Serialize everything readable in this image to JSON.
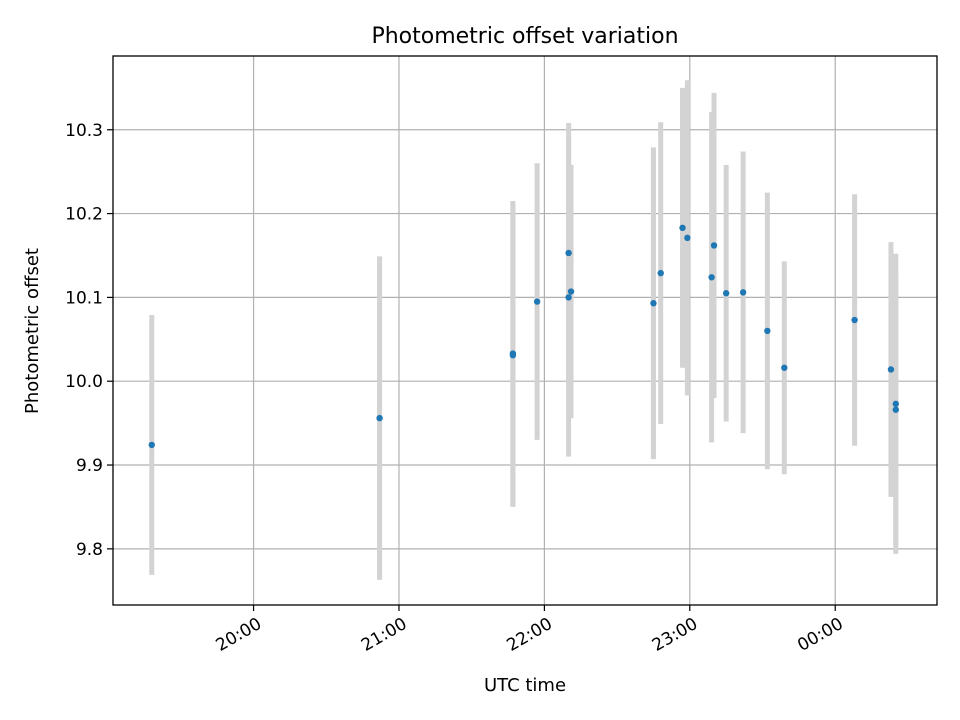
{
  "chart_data": {
    "type": "scatter",
    "title": "Photometric offset variation",
    "xlabel": "UTC time",
    "ylabel": "Photometric offset",
    "x_axis_kind": "time",
    "xlim": [
      "19:02",
      "00:42"
    ],
    "ylim": [
      9.733,
      10.388
    ],
    "grid": true,
    "x_ticks": [
      "20:00",
      "21:00",
      "22:00",
      "23:00",
      "00:00"
    ],
    "y_ticks": [
      "9.8",
      "9.9",
      "10.0",
      "10.1",
      "10.2",
      "10.3"
    ],
    "points": [
      {
        "x": "19:18",
        "y": 9.924,
        "yerr": 0.155
      },
      {
        "x": "20:52",
        "y": 9.956,
        "yerr": 0.193
      },
      {
        "x": "21:47",
        "y": 10.033,
        "yerr": 0.182
      },
      {
        "x": "21:47",
        "y": 10.031,
        "yerr": 0.181
      },
      {
        "x": "21:57",
        "y": 10.095,
        "yerr": 0.165
      },
      {
        "x": "22:10",
        "y": 10.1,
        "yerr": 0.19
      },
      {
        "x": "22:10",
        "y": 10.153,
        "yerr": 0.155
      },
      {
        "x": "22:11",
        "y": 10.107,
        "yerr": 0.151
      },
      {
        "x": "22:45",
        "y": 10.093,
        "yerr": 0.186
      },
      {
        "x": "22:48",
        "y": 10.129,
        "yerr": 0.18
      },
      {
        "x": "22:57",
        "y": 10.183,
        "yerr": 0.167
      },
      {
        "x": "22:59",
        "y": 10.171,
        "yerr": 0.188
      },
      {
        "x": "23:09",
        "y": 10.124,
        "yerr": 0.197
      },
      {
        "x": "23:10",
        "y": 10.162,
        "yerr": 0.182
      },
      {
        "x": "23:15",
        "y": 10.105,
        "yerr": 0.153
      },
      {
        "x": "23:22",
        "y": 10.106,
        "yerr": 0.168
      },
      {
        "x": "23:32",
        "y": 10.06,
        "yerr": 0.165
      },
      {
        "x": "23:39",
        "y": 10.016,
        "yerr": 0.127
      },
      {
        "x": "00:08",
        "y": 10.073,
        "yerr": 0.15
      },
      {
        "x": "00:23",
        "y": 10.014,
        "yerr": 0.152
      },
      {
        "x": "00:25",
        "y": 9.966,
        "yerr": 0.162
      },
      {
        "x": "00:25",
        "y": 9.973,
        "yerr": 0.179
      }
    ],
    "colors": {
      "point": "#1f77b4",
      "errorbar": "#d3d3d3",
      "grid": "#b0b0b0",
      "frame": "#000000"
    }
  }
}
